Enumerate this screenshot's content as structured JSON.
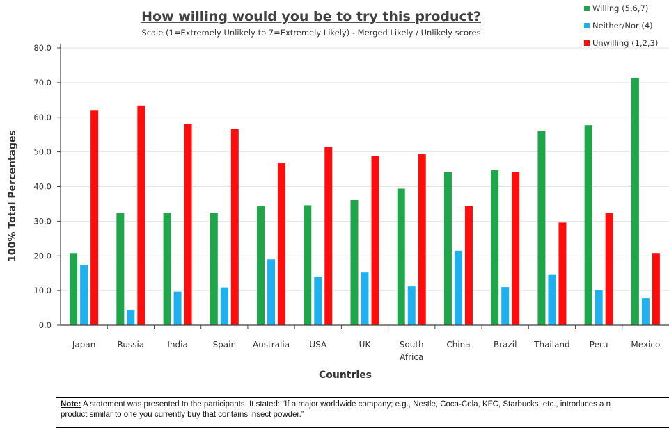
{
  "chart_data": {
    "type": "bar",
    "title": "How willing would you be to try this product?",
    "subtitle": "Scale (1=Extremely Unlikely to 7=Extremely Likely) - Merged Likely / Unlikely scores",
    "xlabel": "Countries",
    "ylabel": "100% Total Percentages",
    "ylim": [
      0,
      80
    ],
    "yticks": [
      "0.0",
      "10.0",
      "20.0",
      "30.0",
      "40.0",
      "50.0",
      "60.0",
      "70.0",
      "80.0"
    ],
    "categories": [
      "Japan",
      "Russia",
      "India",
      "Spain",
      "Australia",
      "USA",
      "UK",
      "South Africa",
      "China",
      "Brazil",
      "Thailand",
      "Peru",
      "Mexico"
    ],
    "category_lines": [
      [
        "Japan"
      ],
      [
        "Russia"
      ],
      [
        "India"
      ],
      [
        "Spain"
      ],
      [
        "Australia"
      ],
      [
        "USA"
      ],
      [
        "UK"
      ],
      [
        "South",
        "Africa"
      ],
      [
        "China"
      ],
      [
        "Brazil"
      ],
      [
        "Thailand"
      ],
      [
        "Peru"
      ],
      [
        "Mexico"
      ]
    ],
    "series": [
      {
        "name": "Willing (5,6,7)",
        "color": "#1fa64a",
        "values": [
          20.8,
          32.3,
          32.4,
          32.4,
          34.3,
          34.6,
          36.1,
          39.4,
          44.2,
          44.7,
          56.1,
          57.7,
          71.4
        ]
      },
      {
        "name": "Neither/Nor (4)",
        "color": "#1fb0f0",
        "values": [
          17.4,
          4.4,
          9.7,
          10.9,
          19.0,
          13.9,
          15.2,
          11.2,
          21.5,
          11.0,
          14.5,
          10.1,
          7.8
        ]
      },
      {
        "name": "Unwilling (1,2,3)",
        "color": "#ff0d0d",
        "values": [
          61.9,
          63.4,
          58.0,
          56.6,
          46.7,
          51.4,
          48.8,
          49.5,
          34.3,
          44.2,
          29.6,
          32.3,
          20.8
        ]
      }
    ],
    "grid": true,
    "legend_position": "top-right"
  },
  "note": {
    "label": "Note:",
    "line1": "A statement was presented to the participants. It stated: “If a major worldwide company; e.g., Nestle, Coca-Cola, KFC, Starbucks, etc., introduces a n",
    "line2": "product similar to one you currently buy that contains insect powder.”"
  }
}
